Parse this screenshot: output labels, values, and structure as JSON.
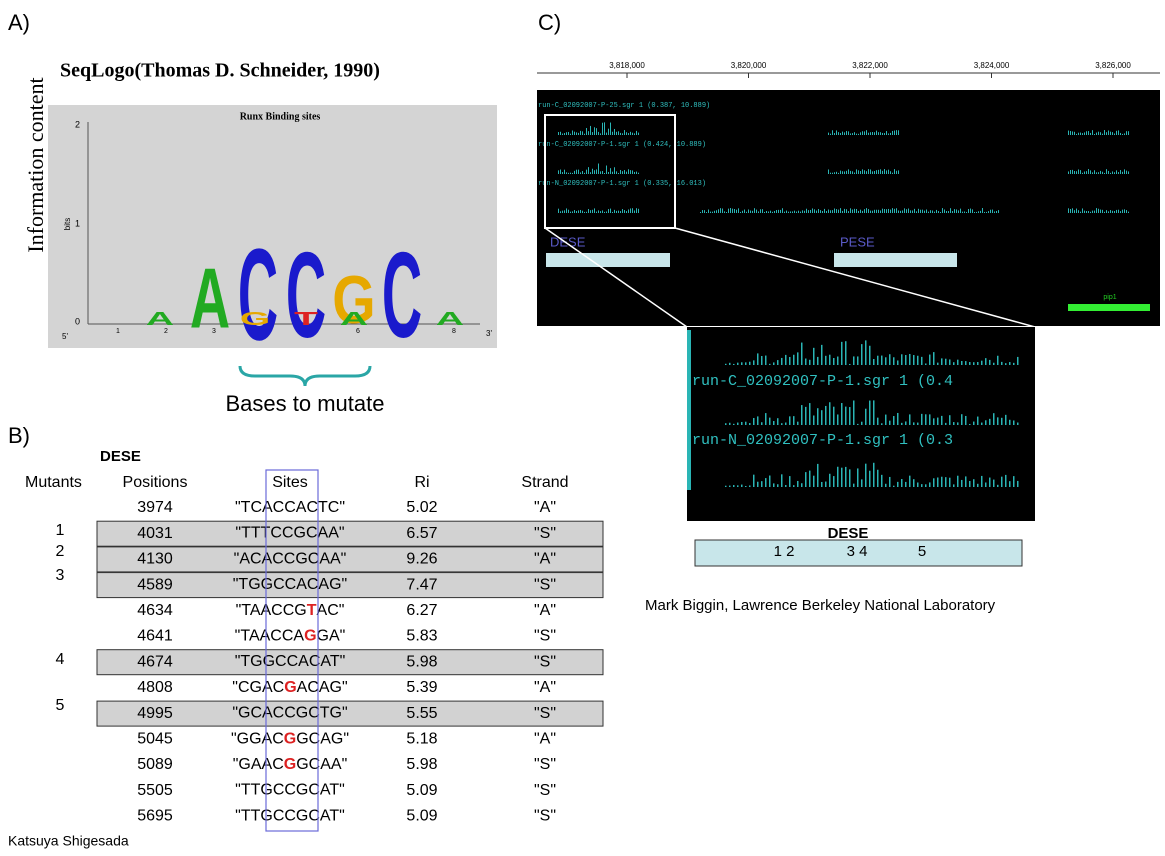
{
  "panel_a": {
    "label": "A)",
    "title": "SeqLogo(Thomas D. Schneider, 1990)",
    "y_label": "Information content",
    "logo": {
      "title": "Runx Binding sites",
      "axis_label": "bits",
      "ticks": [
        "2",
        "1",
        "0"
      ],
      "positions": [
        "1",
        "2",
        "3",
        "4",
        "5",
        "6",
        "7",
        "8"
      ],
      "end5": "5'",
      "end3": "3'",
      "letters": [
        "A",
        "C",
        "C",
        "G",
        "C"
      ],
      "small_letters": [
        "A",
        "G",
        "T",
        "A",
        "A"
      ]
    },
    "brace_label": "Bases to mutate"
  },
  "panel_b": {
    "label": "B)",
    "group": "DESE",
    "headers": [
      "Mutants",
      "Positions",
      "Sites",
      "Ri",
      "Strand"
    ],
    "rows": [
      {
        "position": "3974",
        "site": [
          "\"TCACCACTC\""
        ],
        "ri": "5.02",
        "strand": "\"A\""
      },
      {
        "position": "4031",
        "site": [
          "\"TTTCCGCAA\""
        ],
        "ri": "6.57",
        "strand": "\"S\"",
        "mutant": "1"
      },
      {
        "position": "4130",
        "site": [
          "\"ACACCGCAA\""
        ],
        "ri": "9.26",
        "strand": "\"A\"",
        "mutant": "2"
      },
      {
        "position": "4589",
        "site": [
          "\"TGGCCACAG\""
        ],
        "ri": "7.47",
        "strand": "\"S\"",
        "mutant": "3"
      },
      {
        "position": "4634",
        "site": [
          "\"TAACCG",
          "T",
          "AC\""
        ],
        "ri": "6.27",
        "strand": "\"A\""
      },
      {
        "position": "4641",
        "site": [
          "\"TAACCA",
          "G",
          "GA\""
        ],
        "ri": "5.83",
        "strand": "\"S\""
      },
      {
        "position": "4674",
        "site": [
          "\"TGGCCACAT\""
        ],
        "ri": "5.98",
        "strand": "\"S\"",
        "mutant": "4"
      },
      {
        "position": "4808",
        "site": [
          "\"CGAC",
          "G",
          "ACAG\""
        ],
        "ri": "5.39",
        "strand": "\"A\""
      },
      {
        "position": "4995",
        "site": [
          "\"GCACCGCTG\""
        ],
        "ri": "5.55",
        "strand": "\"S\"",
        "mutant": "5"
      },
      {
        "position": "5045",
        "site": [
          "\"GGAC",
          "G",
          "GCAG\""
        ],
        "ri": "5.18",
        "strand": "\"A\""
      },
      {
        "position": "5089",
        "site": [
          "\"GAAC",
          "G",
          "GCAA\""
        ],
        "ri": "5.98",
        "strand": "\"S\""
      },
      {
        "position": "5505",
        "site": [
          "\"TTGCCGCAT\""
        ],
        "ri": "5.09",
        "strand": "\"S\""
      },
      {
        "position": "5695",
        "site": [
          "\"TTGCCGCAT\""
        ],
        "ri": "5.09",
        "strand": "\"S\""
      }
    ],
    "credit": "Katsuya Shigesada"
  },
  "panel_c": {
    "label": "C)",
    "axis_ticks": [
      "3,818,000",
      "3,820,000",
      "3,822,000",
      "3,824,000",
      "3,826,000"
    ],
    "tracks": [
      "run-C_02092007-P-25.sgr 1 (0.387, 10.889)",
      "run-C_02092007-P-1.sgr 1 (0.424, 10.889)",
      "run-N_02092007-P-1.sgr 1 (0.335, 16.013)"
    ],
    "regions": [
      "DESE",
      "PESE"
    ],
    "gene": "pip1",
    "zoom_tracks": [
      "run-C_02092007-P-1.sgr 1 (0.4",
      "run-N_02092007-P-1.sgr 1 (0.3"
    ],
    "zoom_region": "DESE",
    "zoom_marks": [
      "1 2",
      "3 4",
      "5"
    ],
    "credit": "Mark Biggin, Lawrence Berkeley National Laboratory"
  }
}
